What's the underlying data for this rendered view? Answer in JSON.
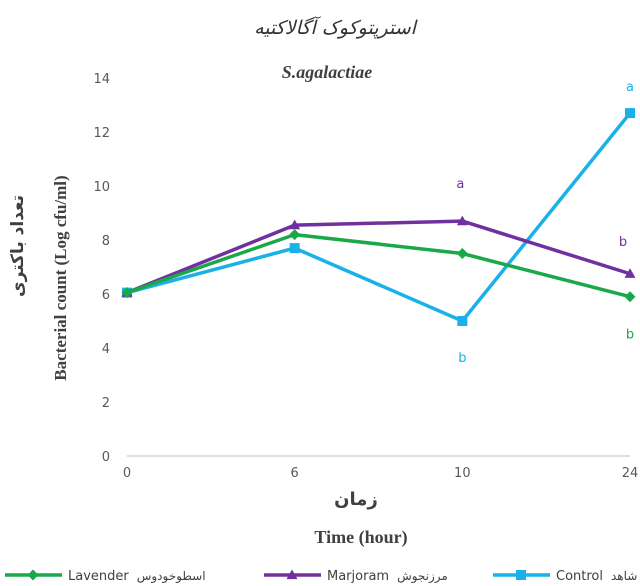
{
  "chart_data": {
    "type": "line",
    "title": "استرپتوکوک آگالاکتیه",
    "subtitle": "S.agalactiae",
    "ylabel": "Bacterial count (Log cfu/ml)",
    "ylabel_fa": "تعداد باکتری",
    "xlabel": "Time (hour)",
    "xlabel_fa": "زمان",
    "categories": [
      "0",
      "6",
      "10",
      "24"
    ],
    "ylim": [
      0,
      14
    ],
    "yticks": [
      0,
      2,
      4,
      6,
      8,
      10,
      12,
      14
    ],
    "grid": false,
    "legend_position": "bottom",
    "series": [
      {
        "key": "lavender",
        "name": "Lavender",
        "name_fa": "اسطوخودوس",
        "color": "#1aa84a",
        "marker": "diamond",
        "values": [
          6.05,
          8.2,
          7.5,
          5.9
        ],
        "annotations": [
          {
            "index": 3,
            "label": "b"
          }
        ]
      },
      {
        "key": "marjoram",
        "name": "Marjoram",
        "name_fa": "مرزنجوش",
        "color": "#7030a0",
        "marker": "triangle",
        "values": [
          6.05,
          8.55,
          8.7,
          6.75
        ],
        "annotations": [
          {
            "index": 2,
            "label": "a"
          },
          {
            "index": 3,
            "label": "b"
          }
        ]
      },
      {
        "key": "control",
        "name": "Control",
        "name_fa": "شاهد",
        "color": "#1ab0e8",
        "marker": "square",
        "values": [
          6.05,
          7.7,
          5.0,
          12.7
        ],
        "annotations": [
          {
            "index": 2,
            "label": "b"
          },
          {
            "index": 3,
            "label": "a"
          }
        ]
      }
    ]
  }
}
